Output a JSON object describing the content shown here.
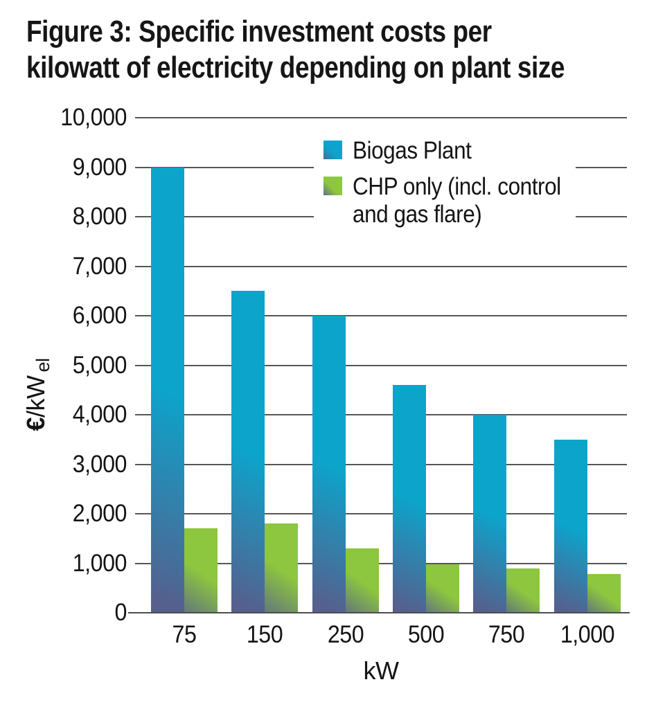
{
  "title": {
    "line1": "Figure 3: Specific investment costs per",
    "line2": "kilowatt of electricity depending on plant size"
  },
  "chart_data": {
    "type": "bar",
    "title": "Figure 3: Specific investment costs per kilowatt of electricity depending on plant size",
    "categories": [
      "75",
      "150",
      "250",
      "500",
      "750",
      "1,000"
    ],
    "series": [
      {
        "name": "Biogas Plant",
        "color": "#0ca4cb",
        "values": [
          9000,
          6500,
          6000,
          4600,
          4000,
          3500
        ]
      },
      {
        "name": "CHP only (incl. control and gas flare)",
        "color": "#8dc63f",
        "values": [
          1700,
          1800,
          1300,
          975,
          900,
          780
        ]
      }
    ],
    "xlabel": "kW",
    "ylabel": "€/kW el",
    "ylim": [
      0,
      10000
    ],
    "ytick_interval": 1000,
    "ytick_labels": [
      "0",
      "1,000",
      "2,000",
      "3,000",
      "4,000",
      "5,000",
      "6,000",
      "7,000",
      "8,000",
      "9,000",
      "10,000"
    ],
    "grid": true,
    "legend_position": "upper right"
  },
  "legend": {
    "items": [
      {
        "label": "Biogas Plant",
        "color": "#0ca4cb"
      },
      {
        "label_line1": "CHP only (incl. control",
        "label_line2": "and gas flare)",
        "color": "#8dc63f"
      }
    ]
  },
  "axes": {
    "ylabel_euro": "€",
    "ylabel_rest": "/kW",
    "ylabel_sub": "el",
    "xlabel": "kW"
  },
  "colors": {
    "biogas": "#0ca4cb",
    "chp": "#8dc63f",
    "shade_dark": "#565f8d",
    "gridline": "#565656",
    "text": "#141414",
    "background": "#ffffff"
  }
}
